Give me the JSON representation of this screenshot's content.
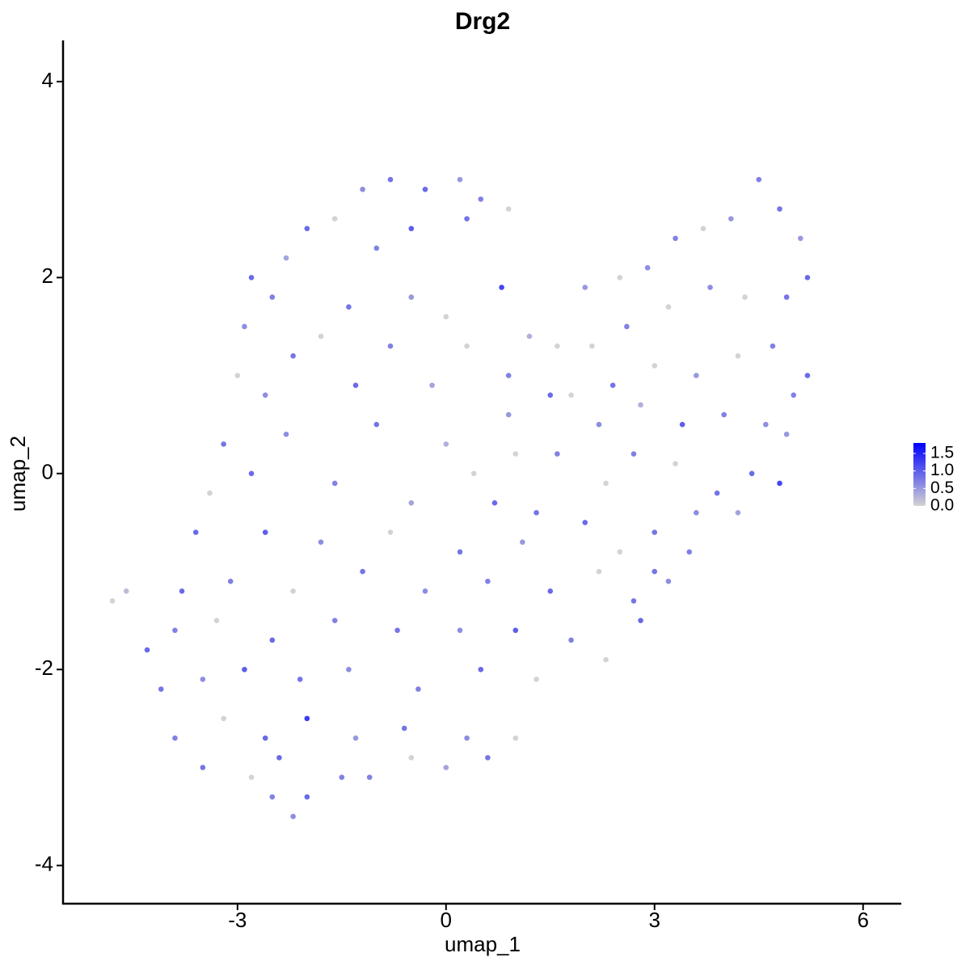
{
  "chart_data": {
    "type": "scatter",
    "title": "Drg2",
    "x_label": "umap_1",
    "y_label": "umap_2",
    "xlim": [
      -5.51,
      6.55
    ],
    "ylim": [
      -4.39,
      4.42
    ],
    "xticks": [
      -3,
      0,
      3,
      6
    ],
    "yticks": [
      -4,
      -2,
      0,
      2,
      4
    ],
    "color_low": "#d3d3d3",
    "color_high": "#0000ff",
    "colorlim": [
      0,
      1.8
    ],
    "colorbar_ticks": [
      {
        "value": 0,
        "label": "0.0"
      },
      {
        "value": 0.5,
        "label": "0.5"
      },
      {
        "value": 1,
        "label": "1.0"
      },
      {
        "value": 1.5,
        "label": "1.5"
      }
    ],
    "x": [
      -1.2,
      -0.8,
      -0.3,
      0.2,
      0.5,
      -1.6,
      -2.0,
      -2.3,
      0.9,
      -0.5,
      0.3,
      -1.0,
      -2.8,
      -2.5,
      -2.9,
      -1.4,
      -0.5,
      0.0,
      0.8,
      -2.2,
      -1.8,
      -0.8,
      0.3,
      1.2,
      -3.0,
      -2.6,
      -1.3,
      -0.2,
      0.9,
      -3.2,
      -2.3,
      -1.0,
      0.0,
      0.9,
      1.5,
      -3.4,
      -2.8,
      -1.6,
      -0.5,
      0.4,
      1.3,
      -3.6,
      -2.6,
      -1.8,
      -0.8,
      0.2,
      1.1,
      2.0,
      -3.8,
      -3.1,
      -2.2,
      -1.2,
      -0.3,
      0.6,
      1.5,
      2.2,
      2.7,
      -4.8,
      -4.6,
      -4.3,
      -3.9,
      -3.3,
      -2.5,
      -1.6,
      -0.7,
      0.2,
      1.0,
      1.8,
      2.3,
      -4.1,
      -3.5,
      -2.9,
      -2.1,
      -1.4,
      -0.4,
      0.5,
      1.3,
      -3.9,
      -3.2,
      -2.6,
      -2.0,
      -1.3,
      -0.6,
      0.3,
      1.0,
      -3.5,
      -2.8,
      -2.4,
      -1.5,
      -0.5,
      0.0,
      0.6,
      -2.5,
      -2.2,
      -2.0,
      -1.1,
      1.6,
      2.0,
      2.5,
      2.9,
      3.3,
      3.7,
      4.1,
      4.5,
      4.8,
      5.1,
      5.2,
      4.9,
      4.3,
      3.8,
      3.2,
      2.6,
      2.1,
      4.7,
      5.2,
      4.2,
      3.6,
      3.0,
      2.4,
      1.8,
      2.2,
      2.8,
      3.4,
      4.0,
      4.6,
      5.0,
      4.9,
      4.4,
      4.8,
      3.9,
      3.3,
      2.7,
      2.3,
      3.6,
      3.0,
      2.5,
      3.5,
      3.2,
      2.8,
      3.0,
      4.2,
      1.6,
      1.0,
      0.7
    ],
    "y": [
      2.9,
      3.0,
      2.9,
      3.0,
      2.8,
      2.6,
      2.5,
      2.2,
      2.7,
      2.5,
      2.6,
      2.3,
      2.0,
      1.8,
      1.5,
      1.7,
      1.8,
      1.6,
      1.9,
      1.2,
      1.4,
      1.3,
      1.3,
      1.4,
      1.0,
      0.8,
      0.9,
      0.9,
      1.0,
      0.3,
      0.4,
      0.5,
      0.3,
      0.6,
      0.8,
      -0.2,
      0.0,
      -0.1,
      -0.3,
      0.0,
      -0.4,
      -0.6,
      -0.6,
      -0.7,
      -0.6,
      -0.8,
      -0.7,
      -0.5,
      -1.2,
      -1.1,
      -1.2,
      -1.0,
      -1.2,
      -1.1,
      -1.2,
      -1.0,
      -1.3,
      -1.3,
      -1.2,
      -1.8,
      -1.6,
      -1.5,
      -1.7,
      -1.5,
      -1.6,
      -1.6,
      -1.6,
      -1.7,
      -1.9,
      -2.2,
      -2.1,
      -2.0,
      -2.1,
      -2.0,
      -2.2,
      -2.0,
      -2.1,
      -2.7,
      -2.5,
      -2.7,
      -2.5,
      -2.7,
      -2.6,
      -2.7,
      -2.7,
      -3.0,
      -3.1,
      -2.9,
      -3.1,
      -2.9,
      -3.0,
      -2.9,
      -3.3,
      -3.5,
      -3.3,
      -3.1,
      1.3,
      1.9,
      2.0,
      2.1,
      2.4,
      2.5,
      2.6,
      3.0,
      2.7,
      2.4,
      2.0,
      1.8,
      1.8,
      1.9,
      1.7,
      1.5,
      1.3,
      1.3,
      1.0,
      1.2,
      1.0,
      1.1,
      0.9,
      0.8,
      0.5,
      0.7,
      0.5,
      0.6,
      0.5,
      0.8,
      0.4,
      0.0,
      -0.1,
      -0.2,
      0.1,
      0.2,
      -0.1,
      -0.4,
      -0.6,
      -0.8,
      -0.8,
      -1.1,
      -1.5,
      -1.0,
      -0.4,
      0.2,
      0.2,
      -0.3
    ],
    "values": [
      0.6,
      0.8,
      0.9,
      0.5,
      0.7,
      0,
      0.9,
      0.4,
      0,
      1.0,
      0.8,
      0.7,
      0.9,
      0.7,
      0.6,
      0.8,
      0.5,
      0,
      1.2,
      0.8,
      0,
      0.7,
      0,
      0.3,
      0,
      0.6,
      0.9,
      0.4,
      0.7,
      0.8,
      0.6,
      0.8,
      0.3,
      0.5,
      0.9,
      0,
      0.9,
      0.7,
      0.4,
      0,
      0.8,
      0.9,
      1.0,
      0.6,
      0,
      0.8,
      0.5,
      0.9,
      0.9,
      0.7,
      0,
      0.8,
      0.6,
      0.7,
      0.9,
      0,
      0.8,
      0,
      0.2,
      0.9,
      0.7,
      0,
      0.9,
      0.7,
      0.8,
      0.6,
      1.0,
      0.7,
      0,
      0.8,
      0.6,
      1.0,
      0.8,
      0.6,
      0.7,
      0.9,
      0,
      0.7,
      0,
      0.9,
      1.3,
      0.5,
      0.8,
      0.6,
      0,
      0.8,
      0,
      0.9,
      0.7,
      0,
      0.4,
      0.8,
      0.7,
      0.6,
      0.9,
      0.7,
      0,
      0.5,
      0,
      0.6,
      0.7,
      0,
      0.5,
      0.7,
      0.8,
      0.5,
      0.9,
      0.8,
      0,
      0.6,
      0,
      0.7,
      0,
      0.7,
      0.9,
      0,
      0.5,
      0,
      0.8,
      0,
      0.6,
      0.3,
      1.0,
      0.7,
      0.6,
      0.7,
      0.5,
      0.9,
      1.2,
      0.8,
      0,
      0.7,
      0,
      0.6,
      0.8,
      0,
      0.7,
      0.6,
      0.9,
      0.8,
      0.4,
      0.7,
      0,
      0.9
    ]
  }
}
